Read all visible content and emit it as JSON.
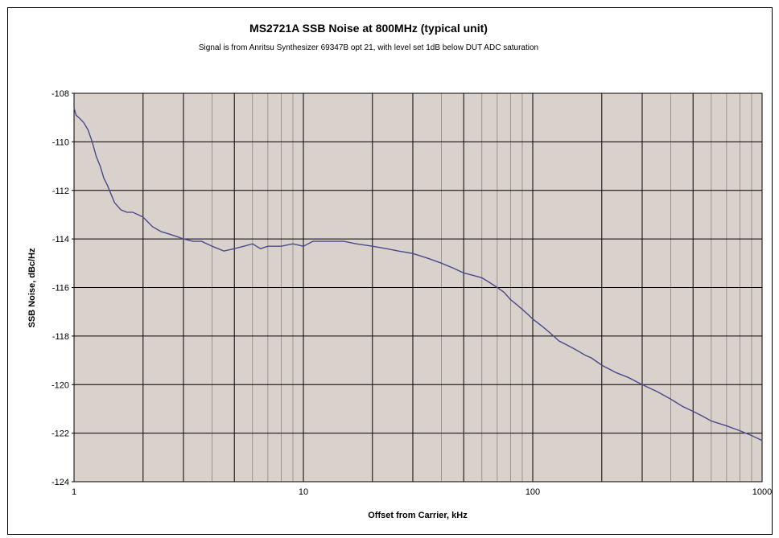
{
  "chart_data": {
    "type": "line",
    "title": "MS2721A SSB Noise at 800MHz (typical unit)",
    "subtitle": "Signal is from Anritsu Synthesizer 69347B opt 21, with level set 1dB below DUT ADC saturation",
    "xlabel": "Offset from Carrier, kHz",
    "ylabel": "SSB Noise, dBc/Hz",
    "x_scale": "log",
    "xlim": [
      1,
      1000
    ],
    "ylim": [
      -124,
      -108
    ],
    "x_ticks": [
      "1",
      "10",
      "100",
      "1000"
    ],
    "y_ticks": [
      "-108",
      "-110",
      "-112",
      "-114",
      "-116",
      "-118",
      "-120",
      "-122",
      "-124"
    ],
    "grid": true,
    "legend": "none",
    "colors": {
      "plot_background": "#d9d1cc",
      "line": "#4a4a8c",
      "grid_major": "#000000",
      "grid_minor": "#8a8580"
    },
    "series": [
      {
        "x": [
          1,
          1.02,
          1.05,
          1.1,
          1.15,
          1.2,
          1.25,
          1.3,
          1.35,
          1.4,
          1.5,
          1.6,
          1.7,
          1.8,
          1.9,
          2.0,
          2.2,
          2.4,
          2.6,
          2.8,
          3.0,
          3.3,
          3.6,
          4.0,
          4.5,
          5.0,
          5.5,
          6.0,
          6.5,
          7.0,
          8.0,
          9.0,
          10,
          11,
          12,
          13,
          15,
          17,
          20,
          23,
          26,
          30,
          35,
          40,
          45,
          50,
          55,
          60,
          65,
          70,
          75,
          80,
          85,
          90,
          95,
          100,
          110,
          120,
          130,
          150,
          170,
          180,
          200,
          230,
          260,
          300,
          350,
          400,
          450,
          500,
          550,
          600,
          700,
          800,
          900,
          1000
        ],
        "y": [
          -108.6,
          -108.9,
          -109.0,
          -109.2,
          -109.5,
          -110.0,
          -110.6,
          -111.0,
          -111.5,
          -111.8,
          -112.5,
          -112.8,
          -112.9,
          -112.9,
          -113.0,
          -113.1,
          -113.5,
          -113.7,
          -113.8,
          -113.9,
          -114.0,
          -114.1,
          -114.1,
          -114.3,
          -114.5,
          -114.4,
          -114.3,
          -114.2,
          -114.4,
          -114.3,
          -114.3,
          -114.2,
          -114.3,
          -114.1,
          -114.1,
          -114.1,
          -114.1,
          -114.2,
          -114.3,
          -114.4,
          -114.5,
          -114.6,
          -114.8,
          -115.0,
          -115.2,
          -115.4,
          -115.5,
          -115.6,
          -115.8,
          -116.0,
          -116.2,
          -116.5,
          -116.7,
          -116.9,
          -117.1,
          -117.3,
          -117.6,
          -117.9,
          -118.2,
          -118.5,
          -118.8,
          -118.9,
          -119.2,
          -119.5,
          -119.7,
          -120.0,
          -120.3,
          -120.6,
          -120.9,
          -121.1,
          -121.3,
          -121.5,
          -121.7,
          -121.9,
          -122.1,
          -122.3
        ]
      }
    ]
  }
}
